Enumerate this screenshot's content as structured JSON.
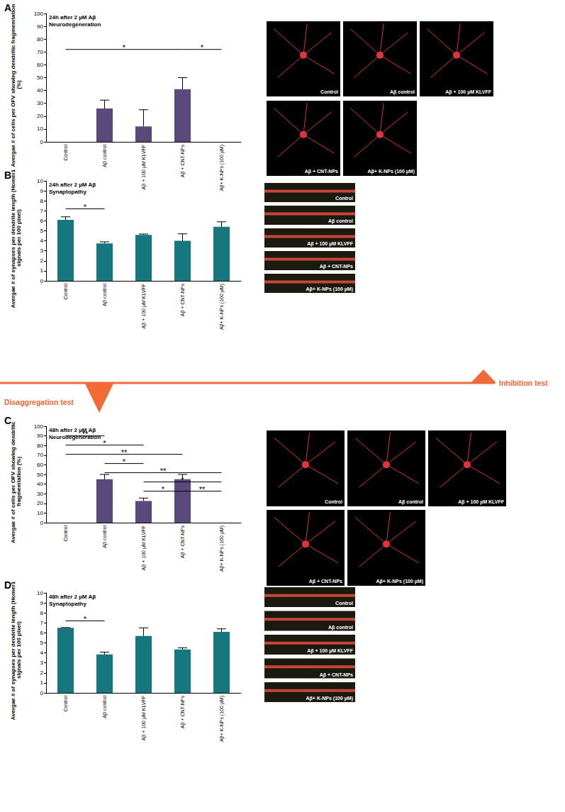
{
  "chart_data": [
    {
      "panel": "A",
      "type": "bar",
      "title": "24h after 2 µM Aβ",
      "subtitle": "Neurodegeneration",
      "y_label": "Avergae # of cells per OFV showing dendritic fragmemtation (%)",
      "categories": [
        "Control",
        "Aβ control",
        "Aβ + 100 µM KLVFF",
        "Aβ + CNT-NPs",
        "Aβ+ K-NPs (100 µM)"
      ],
      "values": [
        0,
        26,
        12,
        41,
        0
      ],
      "errors": [
        0,
        6.5,
        13,
        9,
        0
      ],
      "color": "#5a4a7c",
      "ylim": [
        0,
        100
      ],
      "yticks": [
        0,
        10,
        20,
        30,
        40,
        50,
        60,
        70,
        80,
        90,
        100
      ],
      "grid": false,
      "significance": [
        {
          "from": "Control",
          "to": "Aβ + CNT-NPs",
          "label": "*"
        },
        {
          "from": "Aβ + CNT-NPs",
          "to": "Aβ+ K-NPs (100 µM)",
          "label": "*"
        }
      ],
      "images": [
        "Control",
        "Aβ control",
        "Aβ + 100 µM KLVFF",
        "Aβ + CNT-NPs",
        "Aβ+ K-NPs (100 µM)"
      ]
    },
    {
      "panel": "B",
      "type": "bar",
      "title": "24h after 2 µM Aβ",
      "subtitle": "Synaptopathy",
      "y_label": "Avergae # of synapses per dendrite length (Homer1 signals per 100 pixel)",
      "categories": [
        "Control",
        "Aβ control",
        "Aβ + 100 µM KLVFF",
        "Aβ + CNT-NPs",
        "Aβ+ K-NPs (100 µM)"
      ],
      "values": [
        6.1,
        3.75,
        4.6,
        4.0,
        5.4
      ],
      "errors": [
        0.3,
        0.15,
        0.08,
        0.7,
        0.5
      ],
      "color": "#17777e",
      "ylim": [
        0,
        10
      ],
      "yticks": [
        0,
        1,
        2,
        3,
        4,
        5,
        6,
        7,
        8,
        9,
        10
      ],
      "grid": false,
      "significance": [
        {
          "from": "Control",
          "to": "Aβ control",
          "label": "*"
        }
      ],
      "images": [
        "Control",
        "Aβ control",
        "Aβ + 100 µM KLVFF",
        "Aβ + CNT-NPs",
        "Aβ+ K-NPs (100 µM)"
      ]
    },
    {
      "panel": "C",
      "type": "bar",
      "title": "48h after 2 µM Aβ",
      "subtitle": "Neurodegeneration",
      "y_label": "Avergae # of cells per OFV showing dendritic fragmemtation (%)",
      "categories": [
        "Control",
        "Aβ control",
        "Aβ + 100 µM KLVFF",
        "Aβ + CNT-NPs",
        "Aβ+ K-NPs (100 µM)"
      ],
      "values": [
        0,
        45,
        22.5,
        45,
        0
      ],
      "errors": [
        0,
        5,
        3,
        5,
        0
      ],
      "color": "#5a4a7c",
      "ylim": [
        0,
        100
      ],
      "yticks": [
        0,
        10,
        20,
        30,
        40,
        50,
        60,
        70,
        80,
        90,
        100
      ],
      "grid": false,
      "significance": [
        {
          "from": "Control",
          "to": "Aβ control",
          "label": "**"
        },
        {
          "from": "Control",
          "to": "Aβ + 100 µM KLVFF",
          "label": "*"
        },
        {
          "from": "Control",
          "to": "Aβ + CNT-NPs",
          "label": "**"
        },
        {
          "from": "Aβ control",
          "to": "Aβ + 100 µM KLVFF",
          "label": "*"
        },
        {
          "from": "Aβ control",
          "to": "Aβ+ K-NPs (100 µM)",
          "label": "**"
        },
        {
          "from": "Aβ + 100 µM KLVFF",
          "to": "Aβ+ K-NPs (100 µM)",
          "label": "*"
        },
        {
          "from": "Aβ + 100 µM KLVFF",
          "to": "Aβ + CNT-NPs",
          "label": "*"
        },
        {
          "from": "Aβ + CNT-NPs",
          "to": "Aβ+ K-NPs (100 µM)",
          "label": "**"
        }
      ],
      "images": [
        "Control",
        "Aβ control",
        "Aβ + 100 µM KLVFF",
        "Aβ + CNT-NPs",
        "Aβ+ K-NPs (100 µM)"
      ]
    },
    {
      "panel": "D",
      "type": "bar",
      "title": "48h after 2 µM Aβ",
      "subtitle": "Synaptopathy",
      "y_label": "Avergae # of synapses per dendrite length (Homer1 signals per 100 pixel)",
      "categories": [
        "Control",
        "Aβ control",
        "Aβ + 100 µM KLVFF",
        "Aβ + CNT-NPs",
        "Aβ+ K-NPs (100 µM)"
      ],
      "values": [
        6.5,
        3.85,
        5.7,
        4.35,
        6.1
      ],
      "errors": [
        0.03,
        0.22,
        0.8,
        0.15,
        0.3
      ],
      "color": "#17777e",
      "ylim": [
        0,
        10
      ],
      "yticks": [
        0,
        1,
        2,
        3,
        4,
        5,
        6,
        7,
        8,
        9,
        10
      ],
      "grid": false,
      "significance": [
        {
          "from": "Control",
          "to": "Aβ control",
          "label": "*"
        }
      ],
      "images": [
        "Control",
        "Aβ control",
        "Aβ + 100 µM KLVFF",
        "Aβ + CNT-NPs",
        "Aβ+ K-NPs (100 µM)"
      ]
    }
  ],
  "divider": {
    "top_label": "Inhibition test",
    "bottom_label": "Disaggregation test"
  }
}
